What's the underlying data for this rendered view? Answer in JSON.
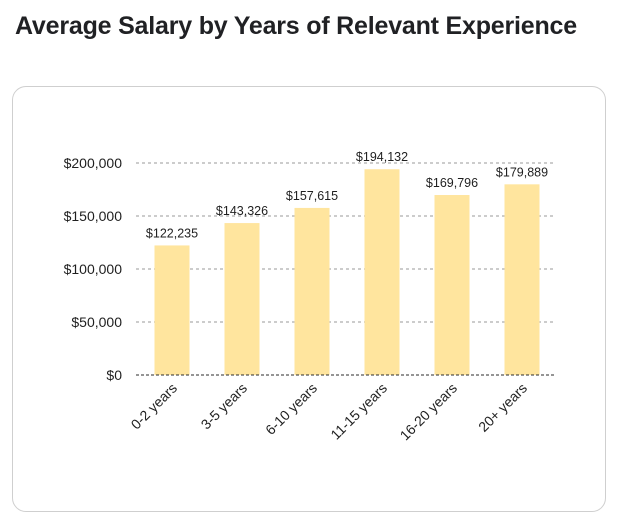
{
  "title": "Average Salary by Years of Relevant Experience",
  "colors": {
    "bar": "#ffe59e",
    "grid": "#9a9a9a",
    "axis": "#2b2b2b",
    "text": "#1f1f1f"
  },
  "chart_data": {
    "type": "bar",
    "title": "Average Salary by Years of Relevant Experience",
    "xlabel": "",
    "ylabel": "",
    "categories": [
      "0-2 years",
      "3-5 years",
      "6-10 years",
      "11-15 years",
      "16-20 years",
      "20+ years"
    ],
    "values": [
      122235,
      143326,
      157615,
      194132,
      169796,
      179889
    ],
    "data_labels": [
      "$122,235",
      "$143,326",
      "$157,615",
      "$194,132",
      "$169,796",
      "$179,889"
    ],
    "ylim": [
      0,
      200000
    ],
    "yticks": [
      0,
      50000,
      100000,
      150000,
      200000
    ],
    "ytick_labels": [
      "$0",
      "$50,000",
      "$100,000",
      "$150,000",
      "$200,000"
    ],
    "grid": true,
    "grid_style": "dashed",
    "legend": "none"
  }
}
